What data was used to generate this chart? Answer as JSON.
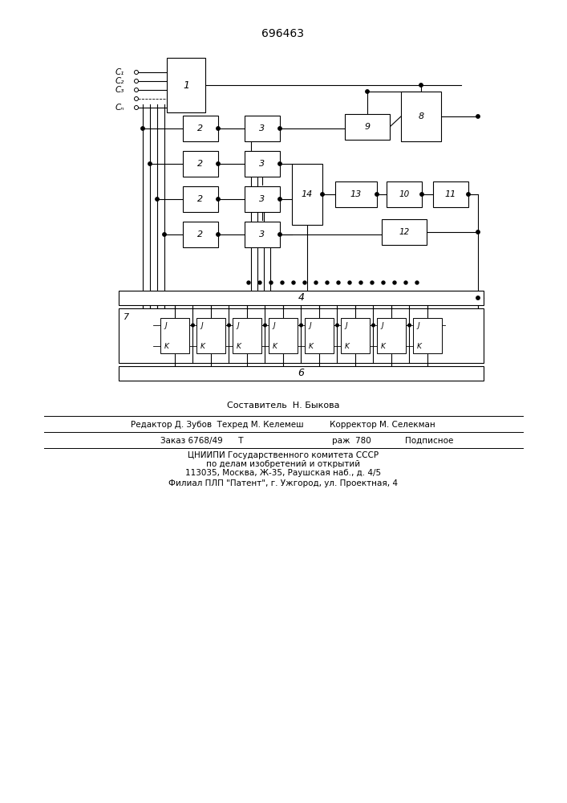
{
  "title": "696463",
  "bg": "#ffffff",
  "lc": "#000000",
  "footer_lines": [
    "Составитель  Н. Быкова",
    "Редактор Д. Зубов  Техред М. Келемеш          Корректор М. Селекман",
    "Заказ 6768/49      Тираж  780             Подписное",
    "ЦНИИПИ Государственного комитета СССР",
    "по делам изобретений и открытий",
    "113035, Москва, Ж-35, Раушская наб., д. 4/5",
    "Филиал ПЛП \"Патент\", г. Ужгород, ул. Проектная, 4"
  ]
}
